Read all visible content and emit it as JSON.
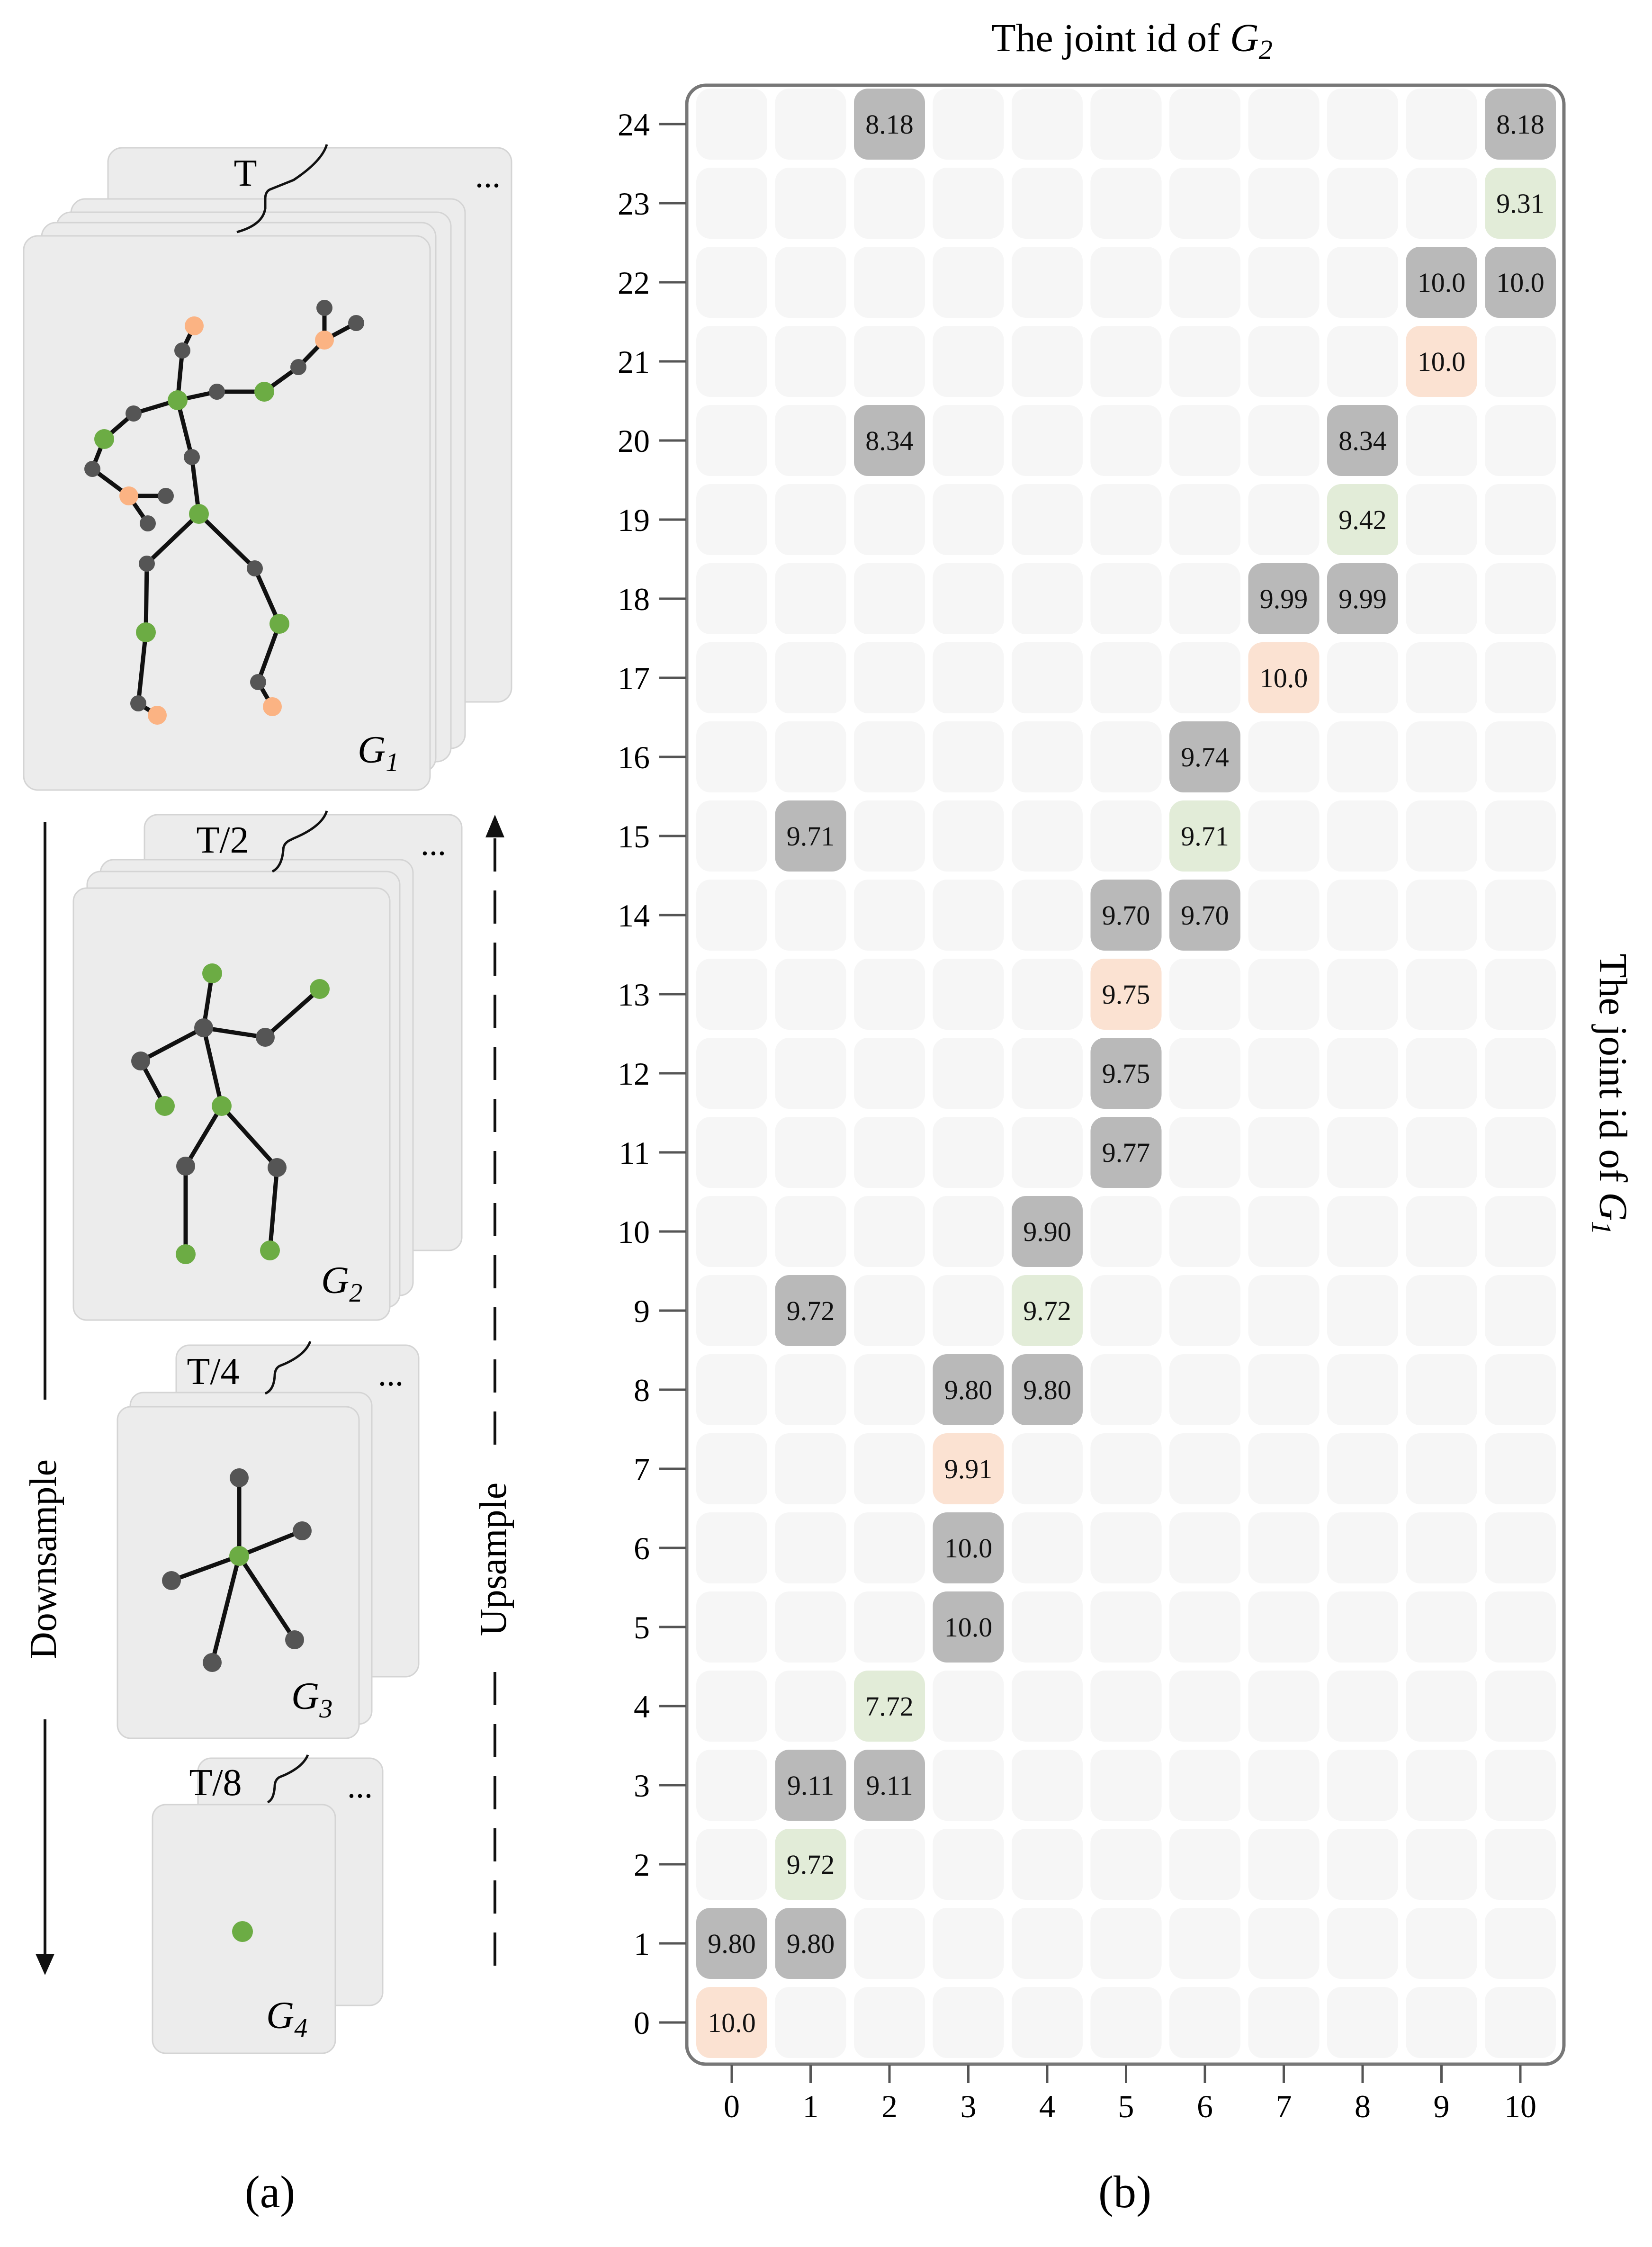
{
  "panel_a": {
    "caption": "(a)",
    "downsample_label": "Downsample",
    "upsample_label": "Upsample",
    "ellipsis": "...",
    "levels": [
      {
        "time_label": "T",
        "graph_symbol": "G",
        "graph_index": "1"
      },
      {
        "time_label": "T/2",
        "graph_symbol": "G",
        "graph_index": "2"
      },
      {
        "time_label": "T/4",
        "graph_symbol": "G",
        "graph_index": "3"
      },
      {
        "time_label": "T/8",
        "graph_symbol": "G",
        "graph_index": "4"
      }
    ]
  },
  "panel_b": {
    "caption": "(b)",
    "top_label_prefix": "The joint id of ",
    "top_label_symbol": "G",
    "top_label_index": "2",
    "right_label_prefix": "The joint id of ",
    "right_label_symbol": "G",
    "right_label_index": "1"
  },
  "colors": {
    "dark_cell": "#b9b9b9",
    "green_cell": "#e2ecd8",
    "orange_cell": "#fbe2d2",
    "empty_cell": "#f6f6f6",
    "green_joint": "#6cac44",
    "orange_joint": "#fbb383",
    "dark_joint": "#555555"
  },
  "chart_data": {
    "type": "heatmap",
    "x_ticks": [
      "0",
      "1",
      "2",
      "3",
      "4",
      "5",
      "6",
      "7",
      "8",
      "9",
      "10"
    ],
    "y_ticks": [
      "0",
      "1",
      "2",
      "3",
      "4",
      "5",
      "6",
      "7",
      "8",
      "9",
      "10",
      "11",
      "12",
      "13",
      "14",
      "15",
      "16",
      "17",
      "18",
      "19",
      "20",
      "21",
      "22",
      "23",
      "24"
    ],
    "cells": [
      {
        "row": 24,
        "col": 2,
        "value": "8.18",
        "kind": "dark"
      },
      {
        "row": 24,
        "col": 10,
        "value": "8.18",
        "kind": "dark"
      },
      {
        "row": 23,
        "col": 10,
        "value": "9.31",
        "kind": "green"
      },
      {
        "row": 22,
        "col": 9,
        "value": "10.0",
        "kind": "dark"
      },
      {
        "row": 22,
        "col": 10,
        "value": "10.0",
        "kind": "dark"
      },
      {
        "row": 21,
        "col": 9,
        "value": "10.0",
        "kind": "orange"
      },
      {
        "row": 20,
        "col": 2,
        "value": "8.34",
        "kind": "dark"
      },
      {
        "row": 20,
        "col": 8,
        "value": "8.34",
        "kind": "dark"
      },
      {
        "row": 19,
        "col": 8,
        "value": "9.42",
        "kind": "green"
      },
      {
        "row": 18,
        "col": 7,
        "value": "9.99",
        "kind": "dark"
      },
      {
        "row": 18,
        "col": 8,
        "value": "9.99",
        "kind": "dark"
      },
      {
        "row": 17,
        "col": 7,
        "value": "10.0",
        "kind": "orange"
      },
      {
        "row": 16,
        "col": 6,
        "value": "9.74",
        "kind": "dark"
      },
      {
        "row": 15,
        "col": 1,
        "value": "9.71",
        "kind": "dark"
      },
      {
        "row": 15,
        "col": 6,
        "value": "9.71",
        "kind": "green"
      },
      {
        "row": 14,
        "col": 5,
        "value": "9.70",
        "kind": "dark"
      },
      {
        "row": 14,
        "col": 6,
        "value": "9.70",
        "kind": "dark"
      },
      {
        "row": 13,
        "col": 5,
        "value": "9.75",
        "kind": "orange"
      },
      {
        "row": 12,
        "col": 5,
        "value": "9.75",
        "kind": "dark"
      },
      {
        "row": 11,
        "col": 5,
        "value": "9.77",
        "kind": "dark"
      },
      {
        "row": 10,
        "col": 4,
        "value": "9.90",
        "kind": "dark"
      },
      {
        "row": 9,
        "col": 1,
        "value": "9.72",
        "kind": "dark"
      },
      {
        "row": 9,
        "col": 4,
        "value": "9.72",
        "kind": "green"
      },
      {
        "row": 8,
        "col": 3,
        "value": "9.80",
        "kind": "dark"
      },
      {
        "row": 8,
        "col": 4,
        "value": "9.80",
        "kind": "dark"
      },
      {
        "row": 7,
        "col": 3,
        "value": "9.91",
        "kind": "orange"
      },
      {
        "row": 6,
        "col": 3,
        "value": "10.0",
        "kind": "dark"
      },
      {
        "row": 5,
        "col": 3,
        "value": "10.0",
        "kind": "dark"
      },
      {
        "row": 4,
        "col": 2,
        "value": "7.72",
        "kind": "green"
      },
      {
        "row": 3,
        "col": 1,
        "value": "9.11",
        "kind": "dark"
      },
      {
        "row": 3,
        "col": 2,
        "value": "9.11",
        "kind": "dark"
      },
      {
        "row": 2,
        "col": 1,
        "value": "9.72",
        "kind": "green"
      },
      {
        "row": 1,
        "col": 0,
        "value": "9.80",
        "kind": "dark"
      },
      {
        "row": 1,
        "col": 1,
        "value": "9.80",
        "kind": "dark"
      },
      {
        "row": 0,
        "col": 0,
        "value": "10.0",
        "kind": "orange"
      }
    ]
  }
}
